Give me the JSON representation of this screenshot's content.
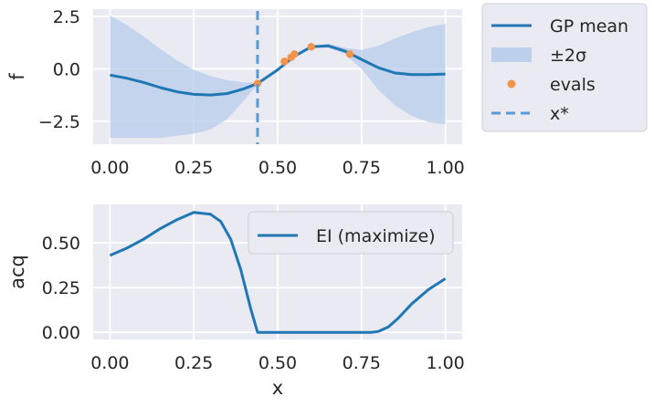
{
  "chart_data": [
    {
      "type": "line",
      "ylabel": "f",
      "xlabel": "",
      "xlim": [
        -0.05,
        1.05
      ],
      "ylim": [
        -3.6,
        2.85
      ],
      "xticks": [
        0.0,
        0.25,
        0.5,
        0.75,
        1.0
      ],
      "xtick_labels": [
        "0.00",
        "0.25",
        "0.50",
        "0.75",
        "1.00"
      ],
      "yticks": [
        -2.5,
        0.0,
        2.5
      ],
      "ytick_labels": [
        "−2.5",
        "0.0",
        "2.5"
      ],
      "grid": true,
      "legend_placement": "outside-upper-right",
      "legend": [
        {
          "label": "GP mean",
          "kind": "line",
          "color": "#1f77b4"
        },
        {
          "label": "±2σ",
          "kind": "patch",
          "color": "#aec7e8"
        },
        {
          "label": "evals",
          "kind": "dot",
          "color": "#ff7f0e"
        },
        {
          "label": "x*",
          "kind": "dashed",
          "color": "#5b9bd5"
        }
      ],
      "series": [
        {
          "name": "GP mean",
          "x": [
            0.0,
            0.05,
            0.1,
            0.15,
            0.2,
            0.25,
            0.3,
            0.35,
            0.4,
            0.44,
            0.5,
            0.55,
            0.6,
            0.65,
            0.7,
            0.75,
            0.8,
            0.85,
            0.9,
            0.95,
            1.0
          ],
          "y": [
            -0.3,
            -0.45,
            -0.65,
            -0.9,
            -1.1,
            -1.22,
            -1.25,
            -1.18,
            -0.95,
            -0.7,
            -0.05,
            0.6,
            1.05,
            1.1,
            0.85,
            0.45,
            0.05,
            -0.2,
            -0.28,
            -0.28,
            -0.25
          ]
        },
        {
          "name": "±2σ",
          "x": [
            0.0,
            0.05,
            0.1,
            0.15,
            0.2,
            0.25,
            0.3,
            0.35,
            0.4,
            0.44,
            0.5,
            0.55,
            0.6,
            0.65,
            0.7,
            0.75,
            0.8,
            0.85,
            0.9,
            0.95,
            1.0
          ],
          "upper": [
            2.55,
            2.1,
            1.55,
            0.95,
            0.4,
            -0.05,
            -0.35,
            -0.55,
            -0.65,
            -0.65,
            -0.05,
            0.65,
            1.1,
            1.2,
            1.0,
            0.9,
            1.1,
            1.45,
            1.75,
            2.0,
            2.15
          ],
          "lower": [
            -3.3,
            -3.3,
            -3.3,
            -3.3,
            -3.2,
            -3.1,
            -2.9,
            -2.4,
            -1.5,
            -0.75,
            -0.1,
            0.55,
            1.0,
            1.0,
            0.7,
            0.0,
            -1.0,
            -1.75,
            -2.25,
            -2.55,
            -2.65
          ]
        },
        {
          "name": "evals",
          "x": [
            0.44,
            0.52,
            0.54,
            0.55,
            0.6,
            0.715
          ],
          "y": [
            -0.7,
            0.35,
            0.55,
            0.7,
            1.05,
            0.7
          ]
        },
        {
          "name": "x*",
          "x": [
            0.44
          ]
        }
      ]
    },
    {
      "type": "line",
      "ylabel": "acq",
      "xlabel": "x",
      "xlim": [
        -0.05,
        1.05
      ],
      "ylim": [
        -0.04,
        0.715
      ],
      "xticks": [
        0.0,
        0.25,
        0.5,
        0.75,
        1.0
      ],
      "xtick_labels": [
        "0.00",
        "0.25",
        "0.50",
        "0.75",
        "1.00"
      ],
      "yticks": [
        0.0,
        0.25,
        0.5
      ],
      "ytick_labels": [
        "0.00",
        "0.25",
        "0.50"
      ],
      "grid": true,
      "legend_placement": "upper-right",
      "legend": [
        {
          "label": "EI (maximize)",
          "kind": "line",
          "color": "#1f77b4"
        }
      ],
      "series": [
        {
          "name": "EI (maximize)",
          "x": [
            0.0,
            0.05,
            0.1,
            0.15,
            0.2,
            0.25,
            0.3,
            0.33,
            0.36,
            0.39,
            0.42,
            0.44,
            0.5,
            0.6,
            0.7,
            0.78,
            0.8,
            0.83,
            0.86,
            0.9,
            0.95,
            1.0
          ],
          "y": [
            0.43,
            0.47,
            0.52,
            0.58,
            0.63,
            0.67,
            0.66,
            0.62,
            0.52,
            0.35,
            0.13,
            0.0,
            0.0,
            0.0,
            0.0,
            0.0,
            0.005,
            0.03,
            0.08,
            0.16,
            0.24,
            0.3
          ]
        }
      ]
    }
  ]
}
